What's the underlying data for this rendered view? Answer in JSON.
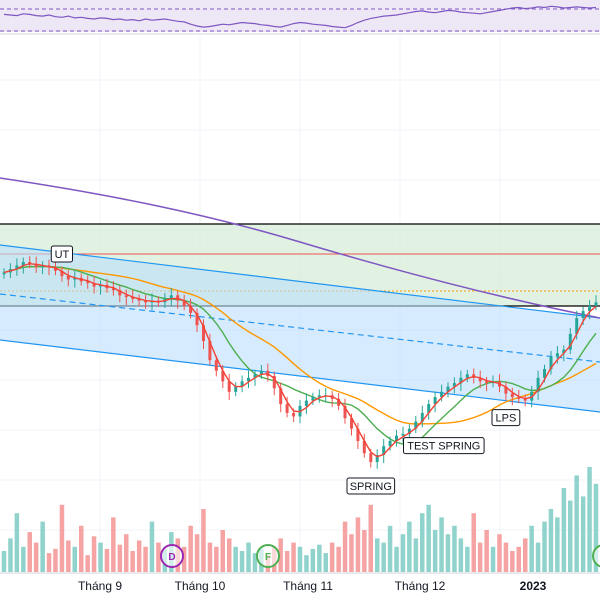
{
  "chart_data": {
    "type": "candlestick",
    "x_axis_labels": [
      {
        "text": "Tháng 9",
        "bold": false
      },
      {
        "text": "Tháng 10",
        "bold": false
      },
      {
        "text": "Tháng 11",
        "bold": false
      },
      {
        "text": "Tháng 12",
        "bold": false
      },
      {
        "text": "2023",
        "bold": true
      }
    ],
    "annotations": [
      {
        "text": "UT",
        "type": "label"
      },
      {
        "text": "SPRING",
        "type": "label"
      },
      {
        "text": "TEST SPRING",
        "type": "label"
      },
      {
        "text": "LPS",
        "type": "label"
      }
    ],
    "event_markers": [
      {
        "text": "D",
        "color": "#9c27b0"
      },
      {
        "text": "F",
        "color": "#4caf50"
      }
    ],
    "colors": {
      "up": "#26a69a",
      "down": "#ef5350",
      "volume_up": "#8fd3cc",
      "volume_down": "#f5a3a3",
      "ma_fast": "#f44336",
      "ma_mid": "#4caf50",
      "ma_slow": "#ff9800",
      "ma_long": "#7e57c2",
      "channel": "#2196f3",
      "channel_fill": "#bbdefb",
      "zone_fill": "#d7edd8",
      "rsi": "#7e57c2",
      "rsi_fill": "#ede7f6",
      "grid": "#f0f3fa"
    },
    "price_series": [
      30.2,
      30.4,
      30.6,
      30.8,
      30.7,
      30.5,
      30.6,
      30.5,
      30.3,
      30.0,
      29.8,
      29.9,
      29.7,
      29.6,
      29.4,
      29.5,
      29.3,
      29.2,
      28.9,
      28.8,
      28.7,
      28.6,
      28.5,
      28.6,
      28.5,
      28.7,
      28.9,
      28.6,
      28.3,
      27.9,
      27.2,
      26.3,
      25.2,
      24.6,
      24.0,
      23.4,
      23.7,
      24.0,
      24.2,
      24.4,
      24.6,
      24.3,
      23.6,
      22.7,
      22.2,
      22.0,
      22.6,
      22.9,
      23.1,
      23.2,
      23.2,
      23.0,
      22.6,
      21.9,
      21.3,
      20.6,
      19.9,
      19.4,
      19.8,
      20.3,
      20.6,
      20.9,
      21.0,
      21.3,
      21.7,
      22.2,
      22.7,
      23.1,
      23.4,
      23.7,
      23.9,
      24.2,
      24.4,
      24.2,
      24.0,
      23.9,
      24.0,
      23.7,
      23.3,
      23.1,
      23.0,
      22.9,
      23.4,
      24.2,
      24.7,
      25.4,
      25.6,
      25.8,
      26.7,
      27.6,
      28.0,
      28.3,
      28.5
    ],
    "volume_series": [
      50,
      80,
      140,
      60,
      95,
      70,
      120,
      45,
      55,
      160,
      75,
      60,
      110,
      40,
      85,
      70,
      55,
      130,
      65,
      90,
      50,
      75,
      60,
      120,
      70,
      55,
      95,
      80,
      60,
      110,
      90,
      150,
      70,
      60,
      100,
      80,
      60,
      50,
      70,
      45,
      55,
      40,
      60,
      80,
      50,
      70,
      60,
      40,
      55,
      65,
      45,
      70,
      60,
      120,
      90,
      130,
      100,
      160,
      80,
      70,
      110,
      60,
      90,
      120,
      80,
      140,
      160,
      100,
      130,
      90,
      110,
      80,
      60,
      140,
      70,
      100,
      60,
      90,
      70,
      50,
      60,
      80,
      110,
      70,
      120,
      150,
      130,
      200,
      170,
      230,
      180,
      250,
      210
    ],
    "ma_fast": "close_ma_3",
    "rsi_series": [
      52,
      51,
      50,
      53,
      52,
      50,
      49,
      51,
      48,
      47,
      49,
      46,
      47,
      45,
      44,
      46,
      45,
      43,
      44,
      42,
      43,
      41,
      44,
      42,
      43,
      44,
      42,
      40,
      39,
      35,
      32,
      30,
      31,
      33,
      35,
      34,
      36,
      38,
      37,
      36,
      34,
      33,
      31,
      30,
      33,
      36,
      38,
      37,
      35,
      34,
      33,
      31,
      30,
      29,
      33,
      38,
      42,
      45,
      47,
      49,
      50,
      51,
      53,
      55,
      57,
      58,
      56,
      55,
      57,
      59,
      58,
      56,
      55,
      54,
      53,
      55,
      57,
      59,
      61,
      63,
      64,
      62,
      63,
      65,
      64,
      66,
      65,
      63,
      64,
      65,
      64,
      63,
      64
    ]
  }
}
